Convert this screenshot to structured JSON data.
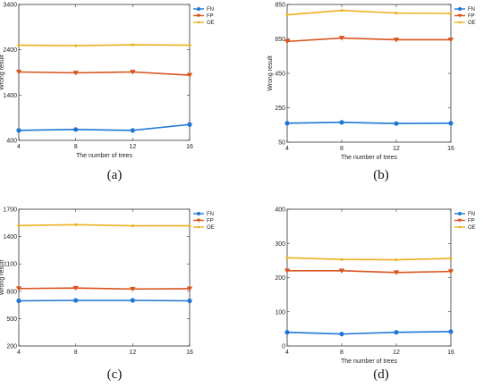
{
  "colors": {
    "FN": "#1f77d4",
    "FP": "#d9531e",
    "OE": "#edb120"
  },
  "chart_data": [
    {
      "type": "line",
      "panel": "(a)",
      "x": [
        4,
        8,
        12,
        16
      ],
      "xlabel": "The number of trees",
      "ylabel": "Wrong result",
      "xlim": [
        4,
        16
      ],
      "ylim": [
        400,
        3400
      ],
      "yticks": [
        400,
        1400,
        2400,
        3400
      ],
      "xticks": [
        4,
        8,
        12,
        16
      ],
      "legend": "top-right",
      "series": [
        {
          "name": "FN",
          "values": [
            620,
            640,
            620,
            750
          ],
          "marker": "circle"
        },
        {
          "name": "FP",
          "values": [
            1910,
            1890,
            1910,
            1840
          ],
          "marker": "triangle-down"
        },
        {
          "name": "OE",
          "values": [
            2500,
            2490,
            2510,
            2500
          ],
          "marker": "dot"
        }
      ]
    },
    {
      "type": "line",
      "panel": "(b)",
      "x": [
        4,
        8,
        12,
        16
      ],
      "xlabel": "The number of trees",
      "ylabel": "Wrong result",
      "xlim": [
        4,
        16
      ],
      "ylim": [
        50,
        850
      ],
      "yticks": [
        50,
        250,
        450,
        650,
        850
      ],
      "xticks": [
        4,
        8,
        12,
        16
      ],
      "legend": "top-right",
      "series": [
        {
          "name": "FN",
          "values": [
            160,
            165,
            158,
            160
          ],
          "marker": "circle"
        },
        {
          "name": "FP",
          "values": [
            635,
            655,
            645,
            645
          ],
          "marker": "triangle-down"
        },
        {
          "name": "OE",
          "values": [
            790,
            815,
            800,
            798
          ],
          "marker": "dot"
        }
      ]
    },
    {
      "type": "line",
      "panel": "(c)",
      "x": [
        4,
        8,
        12,
        16
      ],
      "xlabel": "",
      "ylabel": "Wrong result",
      "xlim": [
        4,
        16
      ],
      "ylim": [
        200,
        1700
      ],
      "yticks": [
        200,
        500,
        800,
        1100,
        1400,
        1700
      ],
      "xticks": [
        4,
        8,
        12,
        16
      ],
      "legend": "top-right",
      "series": [
        {
          "name": "FN",
          "values": [
            695,
            700,
            700,
            695
          ],
          "marker": "circle"
        },
        {
          "name": "FP",
          "values": [
            830,
            835,
            825,
            828
          ],
          "marker": "triangle-down"
        },
        {
          "name": "OE",
          "values": [
            1520,
            1530,
            1518,
            1518
          ],
          "marker": "dot"
        }
      ]
    },
    {
      "type": "line",
      "panel": "(d)",
      "x": [
        4,
        8,
        12,
        16
      ],
      "xlabel": "The number of trees",
      "ylabel": "",
      "xlim": [
        4,
        16
      ],
      "ylim": [
        0,
        400
      ],
      "yticks": [
        0,
        100,
        200,
        300,
        400
      ],
      "xticks": [
        4,
        8,
        12,
        16
      ],
      "legend": "top-right",
      "series": [
        {
          "name": "FN",
          "values": [
            40,
            35,
            40,
            42
          ],
          "marker": "circle"
        },
        {
          "name": "FP",
          "values": [
            220,
            220,
            215,
            218
          ],
          "marker": "triangle-down"
        },
        {
          "name": "OE",
          "values": [
            258,
            253,
            252,
            256
          ],
          "marker": "dot"
        }
      ]
    }
  ]
}
